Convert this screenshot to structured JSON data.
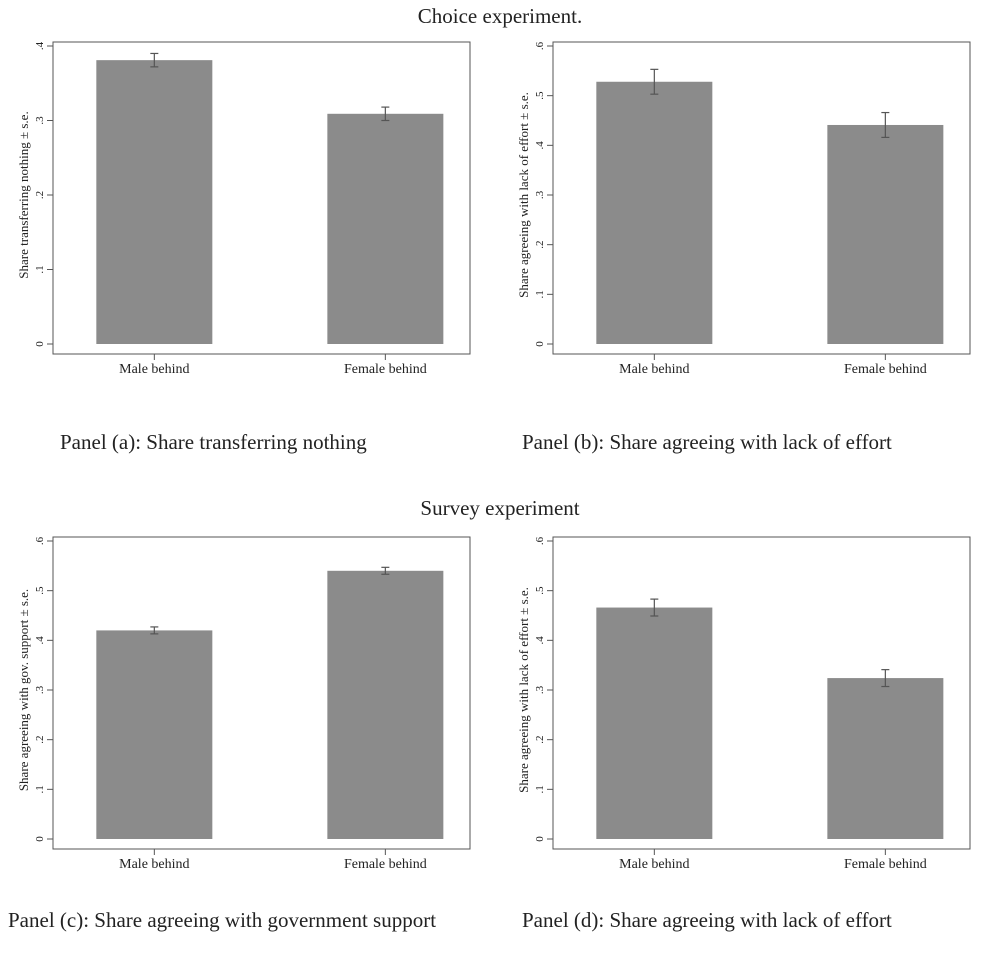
{
  "sections": {
    "top_title": "Choice experiment.",
    "bottom_title": "Survey experiment"
  },
  "captions": {
    "a": "Panel (a): Share transferring nothing",
    "b": "Panel (b): Share agreeing with lack of effort",
    "c": "Panel (c): Share agreeing with government support",
    "d": "Panel (d): Share agreeing with lack of effort"
  },
  "colors": {
    "bar": "#8b8b8b",
    "error_bar": "#555555",
    "frame": "#555555",
    "text": "#222222"
  },
  "chart_data": [
    {
      "id": "a",
      "type": "bar",
      "title": "",
      "xlabel": "",
      "ylabel": "Share transferring nothing ± s.e.",
      "categories": [
        "Male behind",
        "Female behind"
      ],
      "values": [
        0.381,
        0.309
      ],
      "se": [
        0.009,
        0.009
      ],
      "ylim": [
        0,
        0.4
      ],
      "yticks": [
        0,
        0.1,
        0.2,
        0.3,
        0.4
      ],
      "ytick_labels": [
        "0",
        ".1",
        ".2",
        ".3",
        ".4"
      ],
      "grid": false
    },
    {
      "id": "b",
      "type": "bar",
      "title": "",
      "xlabel": "",
      "ylabel": "Share agreeing with lack of effort ± s.e.",
      "categories": [
        "Male behind",
        "Female behind"
      ],
      "values": [
        0.528,
        0.441
      ],
      "se": [
        0.025,
        0.025
      ],
      "ylim": [
        0,
        0.6
      ],
      "yticks": [
        0,
        0.1,
        0.2,
        0.3,
        0.4,
        0.5,
        0.6
      ],
      "ytick_labels": [
        "0",
        ".1",
        ".2",
        ".3",
        ".4",
        ".5",
        ".6"
      ],
      "grid": false
    },
    {
      "id": "c",
      "type": "bar",
      "title": "",
      "xlabel": "",
      "ylabel": "Share agreeing with gov. support ± s.e.",
      "categories": [
        "Male behind",
        "Female behind"
      ],
      "values": [
        0.42,
        0.54
      ],
      "se": [
        0.007,
        0.007
      ],
      "ylim": [
        0,
        0.6
      ],
      "yticks": [
        0,
        0.1,
        0.2,
        0.3,
        0.4,
        0.5,
        0.6
      ],
      "ytick_labels": [
        "0",
        ".1",
        ".2",
        ".3",
        ".4",
        ".5",
        ".6"
      ],
      "grid": false
    },
    {
      "id": "d",
      "type": "bar",
      "title": "",
      "xlabel": "",
      "ylabel": "Share agreeing with lack of effort ± s.e.",
      "categories": [
        "Male behind",
        "Female behind"
      ],
      "values": [
        0.466,
        0.324
      ],
      "se": [
        0.017,
        0.017
      ],
      "ylim": [
        0,
        0.6
      ],
      "yticks": [
        0,
        0.1,
        0.2,
        0.3,
        0.4,
        0.5,
        0.6
      ],
      "ytick_labels": [
        "0",
        ".1",
        ".2",
        ".3",
        ".4",
        ".5",
        ".6"
      ],
      "grid": false
    }
  ]
}
